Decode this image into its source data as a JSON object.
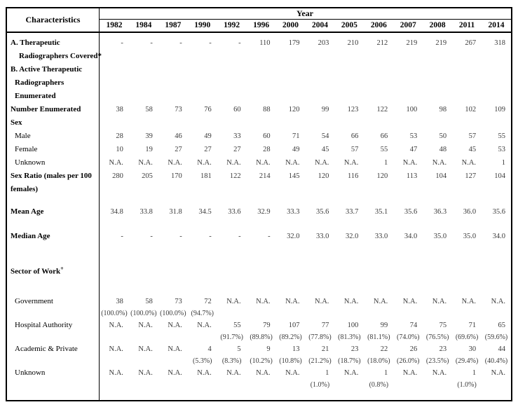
{
  "page": {
    "background": "#ffffff",
    "border_color": "#000000",
    "data_text_color": "#3a3a3a"
  },
  "table": {
    "characteristics_header": "Characteristics",
    "year_header": "Year",
    "years": [
      "1982",
      "1984",
      "1987",
      "1990",
      "1992",
      "1996",
      "2000",
      "2004",
      "2005",
      "2006",
      "2007",
      "2008",
      "2011",
      "2014"
    ],
    "rows": [
      {
        "label": "A. Therapeutic",
        "bold": true,
        "indent": 0,
        "values": [
          "-",
          "-",
          "-",
          "-",
          "-",
          "110",
          "179",
          "203",
          "210",
          "212",
          "219",
          "219",
          "267",
          "318"
        ]
      },
      {
        "label": "Radiographers Covered*",
        "bold": true,
        "indent": 2
      },
      {
        "label": "B. Active Therapeutic",
        "bold": true,
        "indent": 0
      },
      {
        "label": "Radiographers",
        "bold": true,
        "indent": 1
      },
      {
        "label": "Enumerated",
        "bold": true,
        "indent": 1
      },
      {
        "label": "Number Enumerated",
        "bold": true,
        "indent": 0,
        "values": [
          "38",
          "58",
          "73",
          "76",
          "60",
          "88",
          "120",
          "99",
          "123",
          "122",
          "100",
          "98",
          "102",
          "109"
        ]
      },
      {
        "label": "Sex",
        "bold": true,
        "indent": 0
      },
      {
        "label": "Male",
        "bold": false,
        "indent": 1,
        "values": [
          "28",
          "39",
          "46",
          "49",
          "33",
          "60",
          "71",
          "54",
          "66",
          "66",
          "53",
          "50",
          "57",
          "55"
        ]
      },
      {
        "label": "Female",
        "bold": false,
        "indent": 1,
        "values": [
          "10",
          "19",
          "27",
          "27",
          "27",
          "28",
          "49",
          "45",
          "57",
          "55",
          "47",
          "48",
          "45",
          "53"
        ]
      },
      {
        "label": "Unknown",
        "bold": false,
        "indent": 1,
        "values": [
          "N.A.",
          "N.A.",
          "N.A.",
          "N.A.",
          "N.A.",
          "N.A.",
          "N.A.",
          "N.A.",
          "N.A.",
          "1",
          "N.A.",
          "N.A.",
          "N.A.",
          "1"
        ]
      },
      {
        "label": "Sex Ratio (males per 100",
        "bold": true,
        "indent": 0,
        "values": [
          "280",
          "205",
          "170",
          "181",
          "122",
          "214",
          "145",
          "120",
          "116",
          "120",
          "113",
          "104",
          "127",
          "104"
        ]
      },
      {
        "label": "females)",
        "bold": true,
        "indent": 0
      },
      {
        "gap": "s"
      },
      {
        "label": "Mean Age",
        "bold": true,
        "indent": 0,
        "values": [
          "34.8",
          "33.8",
          "31.8",
          "34.5",
          "33.6",
          "32.9",
          "33.3",
          "35.6",
          "33.7",
          "35.1",
          "35.6",
          "36.3",
          "36.0",
          "35.6"
        ]
      },
      {
        "gap": "m"
      },
      {
        "label": "Median Age",
        "bold": true,
        "indent": 0,
        "values": [
          "-",
          "-",
          "-",
          "-",
          "-",
          "-",
          "32.0",
          "33.0",
          "32.0",
          "33.0",
          "34.0",
          "35.0",
          "35.0",
          "34.0"
        ]
      },
      {
        "gap": "l"
      },
      {
        "label": "Sector of Work",
        "sup": "+",
        "bold": true,
        "indent": 0
      },
      {
        "gap": "x"
      },
      {
        "label": "Government",
        "bold": false,
        "indent": 1,
        "values": [
          "38",
          "58",
          "73",
          "72",
          "N.A.",
          "N.A.",
          "N.A.",
          "N.A.",
          "N.A.",
          "N.A.",
          "N.A.",
          "N.A.",
          "N.A.",
          "N.A."
        ],
        "sub": [
          "(100.0%)",
          "(100.0%)",
          "(100.0%)",
          "(94.7%)",
          "",
          "",
          "",
          "",
          "",
          "",
          "",
          "",
          "",
          ""
        ]
      },
      {
        "label": "Hospital Authority",
        "bold": false,
        "indent": 1,
        "values": [
          "N.A.",
          "N.A.",
          "N.A.",
          "N.A.",
          "55",
          "79",
          "107",
          "77",
          "100",
          "99",
          "74",
          "75",
          "71",
          "65"
        ],
        "sub": [
          "",
          "",
          "",
          "",
          "(91.7%)",
          "(89.8%)",
          "(89.2%)",
          "(77.8%)",
          "(81.3%)",
          "(81.1%)",
          "(74.0%)",
          "(76.5%)",
          "(69.6%)",
          "(59.6%)"
        ]
      },
      {
        "label": "Academic & Private",
        "bold": false,
        "indent": 1,
        "values": [
          "N.A.",
          "N.A.",
          "N.A.",
          "4",
          "5",
          "9",
          "13",
          "21",
          "23",
          "22",
          "26",
          "23",
          "30",
          "44"
        ],
        "sub": [
          "",
          "",
          "",
          "(5.3%)",
          "(8.3%)",
          "(10.2%)",
          "(10.8%)",
          "(21.2%)",
          "(18.7%)",
          "(18.0%)",
          "(26.0%)",
          "(23.5%)",
          "(29.4%)",
          "(40.4%)"
        ]
      },
      {
        "label": "Unknown",
        "bold": false,
        "indent": 1,
        "values": [
          "N.A.",
          "N.A.",
          "N.A.",
          "N.A.",
          "N.A.",
          "N.A.",
          "N.A.",
          "1",
          "N.A.",
          "1",
          "N.A.",
          "N.A.",
          "1",
          "N.A."
        ],
        "sub": [
          "",
          "",
          "",
          "",
          "",
          "",
          "",
          "(1.0%)",
          "",
          "(0.8%)",
          "",
          "",
          "(1.0%)",
          ""
        ]
      }
    ]
  }
}
